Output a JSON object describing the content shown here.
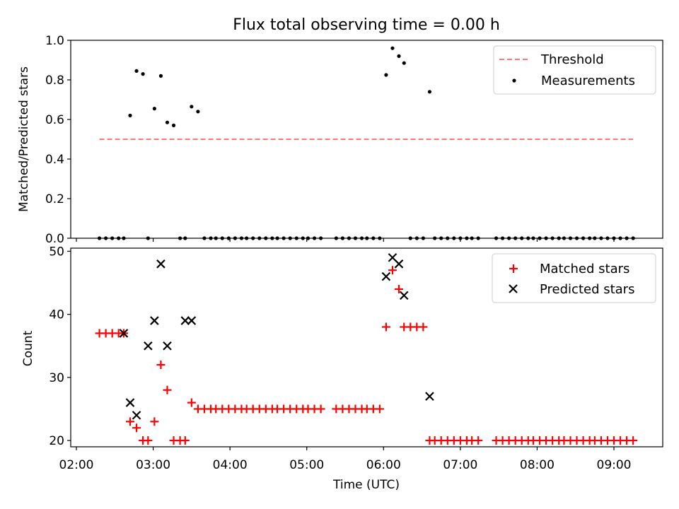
{
  "chart_data": [
    {
      "type": "scatter",
      "title": "Flux total observing time = 0.00 h",
      "xlabel": "",
      "ylabel": "Matched/Predicted stars",
      "ylim": [
        0,
        1.0
      ],
      "yticks": [
        "0.0",
        "0.2",
        "0.4",
        "0.6",
        "0.8",
        "1.0"
      ],
      "legend": {
        "placement": "top-right",
        "entries": [
          "Threshold",
          "Measurements"
        ]
      },
      "threshold": {
        "name": "Threshold",
        "value": 0.5,
        "x_start": "02:18",
        "x_end": "09:15",
        "color": "#ff7777",
        "style": "dashed"
      },
      "series": [
        {
          "name": "Measurements",
          "color": "#000000",
          "marker": "dot",
          "x": [
            "02:18",
            "02:23",
            "02:28",
            "02:33",
            "02:37",
            "02:42",
            "02:47",
            "02:52",
            "02:56",
            "03:01",
            "03:06",
            "03:11",
            "03:16",
            "03:21",
            "03:25",
            "03:30",
            "03:35",
            "03:40",
            "03:45",
            "03:49",
            "03:54",
            "03:59",
            "04:04",
            "04:09",
            "04:13",
            "04:18",
            "04:23",
            "04:28",
            "04:33",
            "04:37",
            "04:42",
            "04:47",
            "04:52",
            "04:57",
            "05:01",
            "05:06",
            "05:11",
            "05:23",
            "05:28",
            "05:33",
            "05:38",
            "05:43",
            "05:47",
            "05:52",
            "05:57",
            "06:02",
            "06:07",
            "06:12",
            "06:16",
            "06:21",
            "06:26",
            "06:31",
            "06:36",
            "06:40",
            "06:45",
            "06:50",
            "06:55",
            "07:00",
            "07:05",
            "07:09",
            "07:14",
            "07:28",
            "07:33",
            "07:38",
            "07:43",
            "07:48",
            "07:53",
            "07:57",
            "08:02",
            "08:07",
            "08:12",
            "08:17",
            "08:21",
            "08:26",
            "08:31",
            "08:36",
            "08:41",
            "08:45",
            "08:50",
            "08:55",
            "09:00",
            "09:05",
            "09:10",
            "09:15"
          ],
          "values": [
            0,
            0,
            0,
            0,
            0,
            0.62,
            0.845,
            0.83,
            0,
            0.655,
            0.82,
            0.585,
            0.57,
            0,
            0,
            0.665,
            0.64,
            0,
            0,
            0,
            0,
            0,
            0,
            0,
            0,
            0,
            0,
            0,
            0,
            0,
            0,
            0,
            0,
            0,
            0,
            0,
            0,
            0,
            0,
            0,
            0,
            0,
            0,
            0,
            0,
            0.825,
            0.96,
            0.92,
            0.885,
            0,
            0,
            0,
            0.74,
            0,
            0,
            0,
            0,
            0,
            0,
            0,
            0,
            0,
            0,
            0,
            0,
            0,
            0,
            0,
            0,
            0,
            0,
            0,
            0,
            0,
            0,
            0,
            0,
            0,
            0,
            0,
            0,
            0,
            0,
            0
          ]
        }
      ]
    },
    {
      "type": "scatter",
      "title": "",
      "xlabel": "Time (UTC)",
      "ylabel": "Count",
      "ylim": [
        19,
        50.5
      ],
      "yticks": [
        "20",
        "30",
        "40",
        "50"
      ],
      "xticks": [
        "02:00",
        "03:00",
        "04:00",
        "05:00",
        "06:00",
        "07:00",
        "08:00",
        "09:00"
      ],
      "legend": {
        "placement": "top-right",
        "entries": [
          "Matched stars",
          "Predicted stars"
        ]
      },
      "series": [
        {
          "name": "Matched stars",
          "color": "#ff0000",
          "marker": "plus",
          "x": [
            "02:18",
            "02:23",
            "02:28",
            "02:33",
            "02:37",
            "02:42",
            "02:47",
            "02:52",
            "02:56",
            "03:01",
            "03:06",
            "03:11",
            "03:16",
            "03:21",
            "03:25",
            "03:30",
            "03:35",
            "03:40",
            "03:45",
            "03:49",
            "03:54",
            "03:59",
            "04:04",
            "04:09",
            "04:13",
            "04:18",
            "04:23",
            "04:28",
            "04:33",
            "04:37",
            "04:42",
            "04:47",
            "04:52",
            "04:57",
            "05:01",
            "05:06",
            "05:11",
            "05:23",
            "05:28",
            "05:33",
            "05:38",
            "05:43",
            "05:47",
            "05:52",
            "05:57",
            "06:02",
            "06:07",
            "06:12",
            "06:16",
            "06:21",
            "06:26",
            "06:31",
            "06:36",
            "06:40",
            "06:45",
            "06:50",
            "06:55",
            "07:00",
            "07:05",
            "07:09",
            "07:14",
            "07:28",
            "07:33",
            "07:38",
            "07:43",
            "07:48",
            "07:53",
            "07:57",
            "08:02",
            "08:07",
            "08:12",
            "08:17",
            "08:21",
            "08:26",
            "08:31",
            "08:36",
            "08:41",
            "08:45",
            "08:50",
            "08:55",
            "09:00",
            "09:05",
            "09:10",
            "09:15"
          ],
          "values": [
            37,
            37,
            37,
            37,
            37,
            23,
            22,
            20,
            20,
            23,
            32,
            28,
            20,
            20,
            20,
            26,
            25,
            25,
            25,
            25,
            25,
            25,
            25,
            25,
            25,
            25,
            25,
            25,
            25,
            25,
            25,
            25,
            25,
            25,
            25,
            25,
            25,
            25,
            25,
            25,
            25,
            25,
            25,
            25,
            25,
            38,
            47,
            44,
            38,
            38,
            38,
            38,
            20,
            20,
            20,
            20,
            20,
            20,
            20,
            20,
            20,
            20,
            20,
            20,
            20,
            20,
            20,
            20,
            20,
            20,
            20,
            20,
            20,
            20,
            20,
            20,
            20,
            20,
            20,
            20,
            20,
            20,
            20,
            20
          ]
        },
        {
          "name": "Predicted stars",
          "color": "#000000",
          "marker": "x",
          "x": [
            "02:37",
            "02:42",
            "02:47",
            "02:56",
            "03:01",
            "03:06",
            "03:11",
            "03:25",
            "03:30",
            "06:02",
            "06:07",
            "06:12",
            "06:16",
            "06:36"
          ],
          "values": [
            37,
            26,
            24,
            35,
            39,
            48,
            35,
            39,
            39,
            46,
            49,
            48,
            43,
            27
          ]
        }
      ]
    }
  ]
}
